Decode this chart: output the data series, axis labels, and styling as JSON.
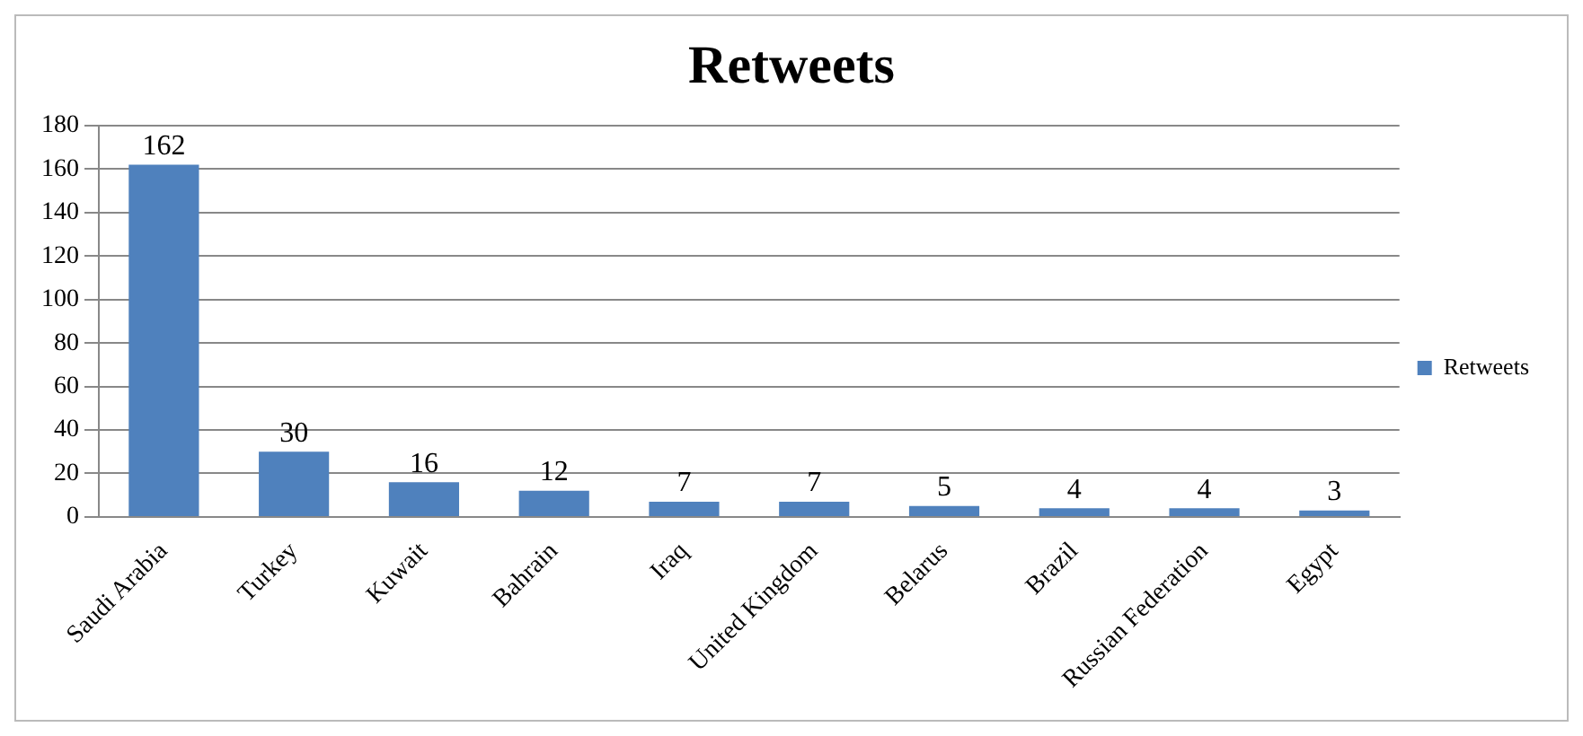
{
  "chart_data": {
    "type": "bar",
    "title": "Retweets",
    "categories": [
      "Saudi Arabia",
      "Turkey",
      "Kuwait",
      "Bahrain",
      "Iraq",
      "United Kingdom",
      "Belarus",
      "Brazil",
      "Russian Federation",
      "Egypt"
    ],
    "series": [
      {
        "name": "Retweets",
        "color": "#4f81bd",
        "values": [
          162,
          30,
          16,
          12,
          7,
          7,
          5,
          4,
          4,
          3
        ]
      }
    ],
    "ylim": [
      0,
      180
    ],
    "yticks": [
      0,
      20,
      40,
      60,
      80,
      100,
      120,
      140,
      160,
      180
    ],
    "grid": "y",
    "legend": "right",
    "data_labels": true
  }
}
